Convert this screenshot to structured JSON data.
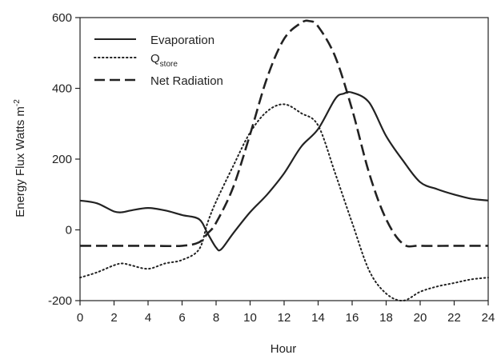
{
  "chart_data": {
    "type": "line",
    "xlabel": "Hour",
    "ylabel": "Energy Flux Watts m",
    "ylabel_superscript": "-2",
    "xlim": [
      0,
      24
    ],
    "ylim": [
      -200,
      600
    ],
    "x_ticks": [
      "0",
      "2",
      "4",
      "6",
      "8",
      "10",
      "12",
      "14",
      "16",
      "18",
      "20",
      "22",
      "24"
    ],
    "y_ticks": [
      "-200",
      "0",
      "200",
      "400",
      "600"
    ],
    "x_tick_values": [
      0,
      2,
      4,
      6,
      8,
      10,
      12,
      14,
      16,
      18,
      20,
      22,
      24
    ],
    "y_tick_values": [
      -200,
      0,
      200,
      400,
      600
    ],
    "grid": false,
    "legend_position": "top-left",
    "series": [
      {
        "name": "Evaporation",
        "style": "solid",
        "x": [
          0,
          1,
          2,
          2.5,
          3,
          4,
          5,
          6,
          7,
          7.5,
          8,
          8.3,
          9,
          10,
          11,
          12,
          13,
          14,
          15,
          15.5,
          16,
          17,
          18,
          19,
          20,
          21,
          22,
          23,
          24
        ],
        "y": [
          83,
          75,
          52,
          50,
          55,
          62,
          55,
          42,
          30,
          -10,
          -50,
          -55,
          -10,
          50,
          100,
          160,
          235,
          285,
          370,
          385,
          388,
          360,
          265,
          195,
          135,
          115,
          100,
          88,
          83
        ]
      },
      {
        "name_main": "Q",
        "name_sub": "store",
        "style": "dotted",
        "x": [
          0,
          1,
          2,
          2.5,
          3,
          4,
          5,
          6,
          7,
          7.5,
          8,
          9,
          10,
          11,
          12,
          13,
          14,
          15,
          16,
          17,
          18,
          19,
          20,
          21,
          22,
          23,
          24
        ],
        "y": [
          -135,
          -120,
          -100,
          -95,
          -100,
          -110,
          -95,
          -85,
          -55,
          20,
          80,
          180,
          275,
          335,
          355,
          330,
          295,
          160,
          20,
          -115,
          -180,
          -200,
          -175,
          -160,
          -150,
          -140,
          -135
        ]
      },
      {
        "name": "Net Radiation",
        "style": "dashed",
        "x": [
          0,
          2,
          4,
          6,
          7,
          7.5,
          8,
          9,
          10,
          11,
          12,
          13,
          13.5,
          14,
          15,
          16,
          17,
          18,
          19,
          20,
          22,
          24
        ],
        "y": [
          -45,
          -45,
          -45,
          -45,
          -35,
          -10,
          20,
          120,
          270,
          430,
          540,
          585,
          590,
          575,
          490,
          340,
          160,
          30,
          -40,
          -45,
          -45,
          -45
        ]
      }
    ]
  }
}
